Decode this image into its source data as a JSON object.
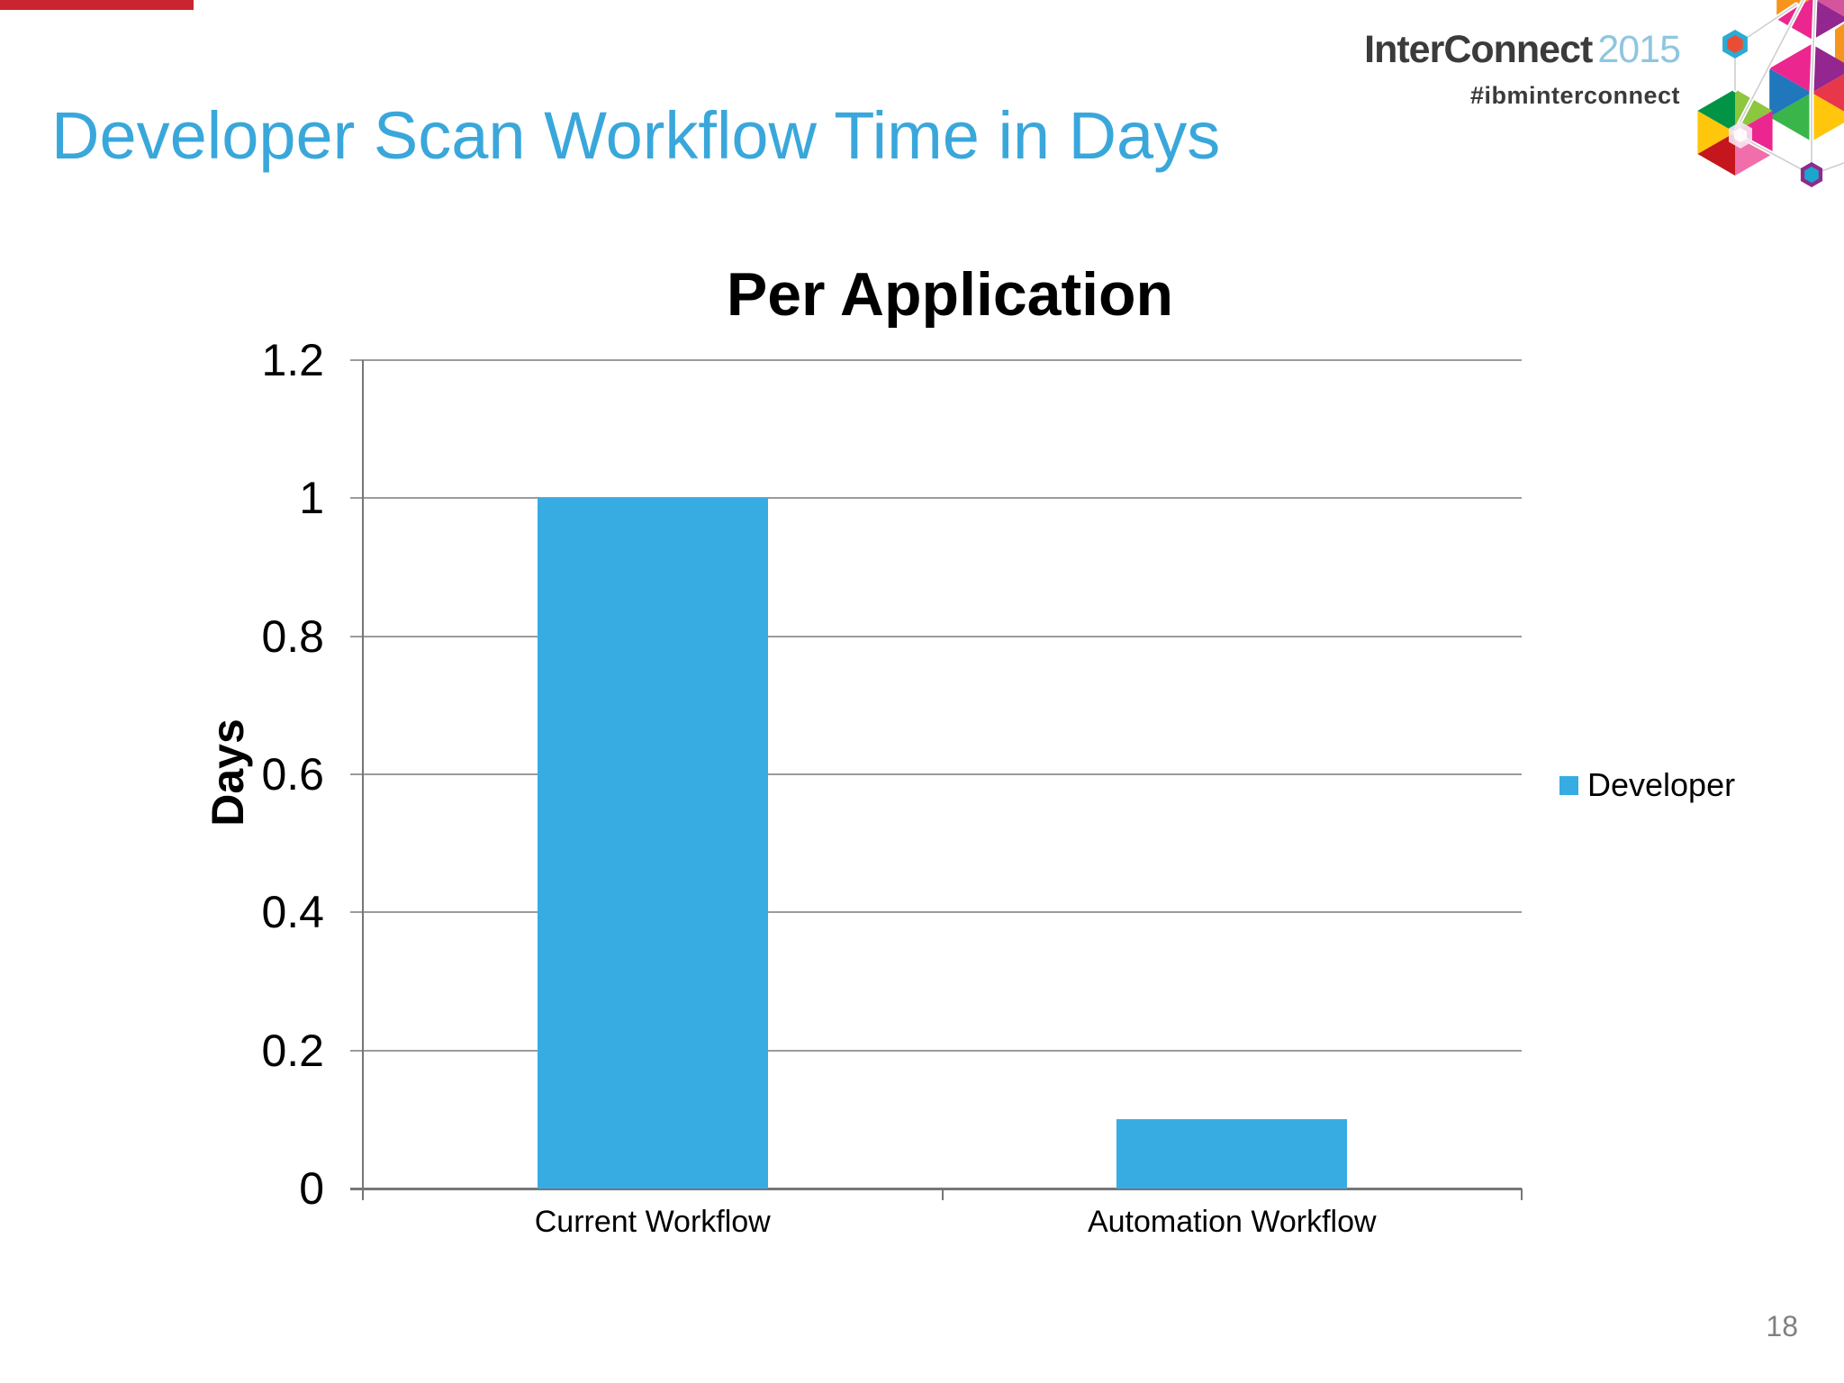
{
  "slide": {
    "title": "Developer Scan Workflow Time in Days",
    "title_color": "#3aa7db",
    "accent_color": "#cb2431",
    "page_number": "18"
  },
  "branding": {
    "logo_primary": "InterConnect",
    "logo_year": "2015",
    "hashtag": "#ibminterconnect",
    "graphic": "hexagon-cluster"
  },
  "chart_data": {
    "type": "bar",
    "title": "Per Application",
    "categories": [
      "Current Workflow",
      "Automation Workflow"
    ],
    "series": [
      {
        "name": "Developer",
        "values": [
          1,
          0.1
        ]
      }
    ],
    "xlabel": "",
    "ylabel": "Days",
    "ylim": [
      0,
      1.2
    ],
    "ytick_values": [
      1.2,
      1,
      0.8,
      0.6,
      0.4,
      0.2,
      0
    ],
    "ytick_labels": [
      "1.2",
      "1",
      "0.8",
      "0.6",
      "0.4",
      "0.2",
      "0"
    ],
    "grid": true,
    "bar_color": "#37ace3",
    "legend_position": "right",
    "legend": [
      "Developer"
    ]
  }
}
